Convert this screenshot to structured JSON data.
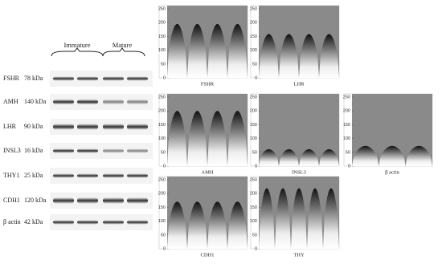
{
  "blot": {
    "groups": [
      "Immature",
      "Mature"
    ],
    "rows": [
      {
        "protein": "FSHR",
        "size": "78 kDa"
      },
      {
        "protein": "AMH",
        "size": "140 kDa"
      },
      {
        "protein": "LHR",
        "size": "90 kDa"
      },
      {
        "protein": "INSL3",
        "size": "16 kDa"
      },
      {
        "protein": "THY1",
        "size": "25 kDa"
      },
      {
        "protein": "CDH1",
        "size": "120 kDa"
      },
      {
        "protein": "β actin",
        "size": "42 kDa"
      }
    ]
  },
  "plots": [
    {
      "title": "FSHR",
      "yticks": [
        0,
        50,
        100,
        150,
        200,
        250
      ]
    },
    {
      "title": "LHR",
      "yticks": [
        0,
        50,
        100,
        150,
        200,
        250
      ]
    },
    {
      "title": "AMH",
      "yticks": [
        0,
        50,
        100,
        150,
        200,
        250
      ]
    },
    {
      "title": "INSL3",
      "yticks": [
        0,
        50,
        100,
        150,
        200,
        250
      ]
    },
    {
      "title": "β actin",
      "yticks": [
        0,
        50,
        100,
        150,
        200,
        250
      ]
    },
    {
      "title": "CDH1",
      "yticks": [
        0,
        50,
        100,
        150,
        200,
        250
      ]
    },
    {
      "title": "THY",
      "yticks": [
        0,
        50,
        100,
        150,
        200,
        250
      ]
    }
  ]
}
